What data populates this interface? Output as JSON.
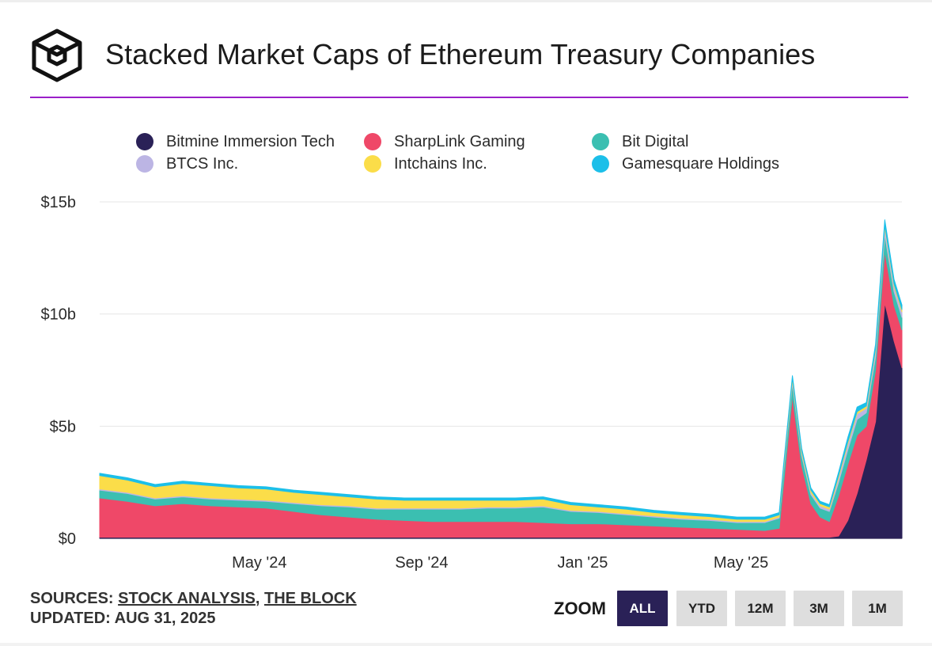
{
  "header": {
    "title": "Stacked Market Caps of Ethereum Treasury Companies",
    "logo_icon": "the-block-cube-logo"
  },
  "legend": [
    {
      "label": "Bitmine Immersion Tech",
      "color": "#2a2157"
    },
    {
      "label": "SharpLink Gaming",
      "color": "#ef4868"
    },
    {
      "label": "Bit Digital",
      "color": "#3bbfb1"
    },
    {
      "label": "BTCS Inc.",
      "color": "#bcb5e4"
    },
    {
      "label": "Intchains Inc.",
      "color": "#fbdd49"
    },
    {
      "label": "Gamesquare Holdings",
      "color": "#1cbfe9"
    }
  ],
  "chart_data": {
    "type": "area",
    "stacked": true,
    "title": "Stacked Market Caps of Ethereum Treasury Companies",
    "xlabel": "",
    "ylabel": "",
    "y_unit": "$ billions",
    "ylim": [
      0,
      15
    ],
    "yticks": [
      0,
      5,
      10,
      15
    ],
    "ytick_labels": [
      "$0",
      "$5b",
      "$10b",
      "$15b"
    ],
    "xticks": [
      "2024-05-01",
      "2024-09-01",
      "2025-01-01",
      "2025-05-01"
    ],
    "xtick_labels": [
      "May '24",
      "Sep '24",
      "Jan '25",
      "May '25"
    ],
    "grid": "horizontal",
    "legend_position": "top",
    "x": [
      "2024-01-01",
      "2024-01-22",
      "2024-02-12",
      "2024-03-04",
      "2024-03-25",
      "2024-04-15",
      "2024-05-06",
      "2024-05-27",
      "2024-06-17",
      "2024-07-08",
      "2024-07-29",
      "2024-08-19",
      "2024-09-09",
      "2024-09-30",
      "2024-10-21",
      "2024-11-11",
      "2024-12-02",
      "2024-12-23",
      "2025-01-13",
      "2025-02-03",
      "2025-02-24",
      "2025-03-17",
      "2025-04-07",
      "2025-04-28",
      "2025-05-19",
      "2025-05-30",
      "2025-06-02",
      "2025-06-09",
      "2025-06-16",
      "2025-06-23",
      "2025-06-30",
      "2025-07-07",
      "2025-07-14",
      "2025-07-21",
      "2025-07-28",
      "2025-08-04",
      "2025-08-11",
      "2025-08-18",
      "2025-08-25",
      "2025-08-31"
    ],
    "series": [
      {
        "name": "Bitmine Immersion Tech",
        "color": "#2a2157",
        "values": [
          0.05,
          0.05,
          0.05,
          0.05,
          0.05,
          0.05,
          0.05,
          0.05,
          0.05,
          0.05,
          0.05,
          0.05,
          0.05,
          0.05,
          0.05,
          0.05,
          0.05,
          0.05,
          0.05,
          0.05,
          0.05,
          0.05,
          0.05,
          0.05,
          0.05,
          0.05,
          0.05,
          0.05,
          0.05,
          0.05,
          0.05,
          0.05,
          0.1,
          0.8,
          2.0,
          3.5,
          5.2,
          10.5,
          8.8,
          7.6
        ]
      },
      {
        "name": "SharpLink Gaming",
        "color": "#ef4868",
        "values": [
          1.75,
          1.6,
          1.4,
          1.5,
          1.4,
          1.35,
          1.3,
          1.15,
          1.0,
          0.9,
          0.8,
          0.75,
          0.7,
          0.7,
          0.7,
          0.7,
          0.65,
          0.6,
          0.6,
          0.55,
          0.5,
          0.45,
          0.4,
          0.35,
          0.3,
          0.4,
          2.2,
          6.3,
          3.2,
          1.5,
          0.9,
          0.7,
          1.8,
          2.5,
          2.6,
          1.5,
          2.3,
          2.3,
          1.6,
          1.7
        ]
      },
      {
        "name": "Bit Digital",
        "color": "#3bbfb1",
        "values": [
          0.35,
          0.35,
          0.3,
          0.3,
          0.3,
          0.3,
          0.3,
          0.35,
          0.4,
          0.45,
          0.45,
          0.5,
          0.55,
          0.55,
          0.6,
          0.6,
          0.7,
          0.55,
          0.5,
          0.45,
          0.4,
          0.35,
          0.35,
          0.3,
          0.35,
          0.45,
          0.55,
          0.55,
          0.45,
          0.4,
          0.4,
          0.45,
          0.6,
          0.65,
          0.7,
          0.6,
          0.6,
          0.75,
          0.6,
          0.55
        ]
      },
      {
        "name": "BTCS Inc.",
        "color": "#bcb5e4",
        "values": [
          0.05,
          0.05,
          0.05,
          0.05,
          0.05,
          0.05,
          0.05,
          0.05,
          0.05,
          0.05,
          0.05,
          0.05,
          0.05,
          0.05,
          0.05,
          0.05,
          0.05,
          0.05,
          0.05,
          0.05,
          0.05,
          0.05,
          0.05,
          0.05,
          0.05,
          0.05,
          0.1,
          0.15,
          0.12,
          0.1,
          0.1,
          0.1,
          0.2,
          0.25,
          0.25,
          0.2,
          0.25,
          0.3,
          0.25,
          0.25
        ]
      },
      {
        "name": "Intchains Inc.",
        "color": "#fbdd49",
        "values": [
          0.6,
          0.55,
          0.5,
          0.55,
          0.55,
          0.5,
          0.5,
          0.45,
          0.45,
          0.4,
          0.4,
          0.35,
          0.35,
          0.35,
          0.3,
          0.3,
          0.3,
          0.25,
          0.2,
          0.2,
          0.15,
          0.15,
          0.12,
          0.1,
          0.1,
          0.1,
          0.1,
          0.1,
          0.1,
          0.1,
          0.1,
          0.1,
          0.1,
          0.1,
          0.1,
          0.1,
          0.1,
          0.1,
          0.1,
          0.1
        ]
      },
      {
        "name": "Gamesquare Holdings",
        "color": "#1cbfe9",
        "values": [
          0.1,
          0.1,
          0.1,
          0.1,
          0.1,
          0.1,
          0.1,
          0.1,
          0.1,
          0.1,
          0.1,
          0.1,
          0.1,
          0.1,
          0.1,
          0.1,
          0.1,
          0.1,
          0.1,
          0.1,
          0.1,
          0.1,
          0.1,
          0.1,
          0.1,
          0.1,
          0.1,
          0.1,
          0.1,
          0.1,
          0.1,
          0.1,
          0.15,
          0.2,
          0.2,
          0.15,
          0.2,
          0.25,
          0.2,
          0.2
        ]
      }
    ]
  },
  "footer": {
    "sources_prefix": "SOURCES: ",
    "source_1": "STOCK ANALYSIS",
    "separator": ", ",
    "source_2": "THE BLOCK",
    "updated": "UPDATED: AUG 31, 2025"
  },
  "zoom": {
    "label": "ZOOM",
    "buttons": [
      "ALL",
      "YTD",
      "12M",
      "3M",
      "1M"
    ],
    "active": "ALL"
  }
}
